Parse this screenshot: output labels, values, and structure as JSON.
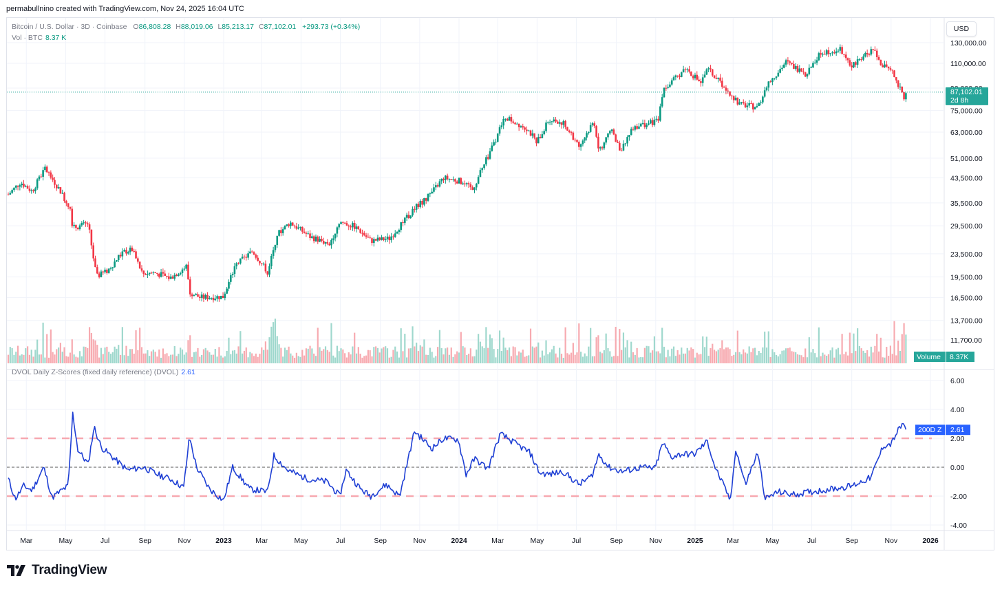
{
  "header": {
    "attribution": "permabullnino created with TradingView.com, Nov 24, 2025 16:04 UTC"
  },
  "legend": {
    "symbol": "Bitcoin / U.S. Dollar · 3D · Coinbase",
    "o_label": "O",
    "o": "86,808.28",
    "h_label": "H",
    "h": "88,019.06",
    "l_label": "L",
    "l": "85,213.17",
    "c_label": "C",
    "c": "87,102.01",
    "change": "+293.73 (+0.34%)",
    "vol_label": "Vol · BTC",
    "vol": "8.37 K",
    "indicator": "DVOL Daily Z-Scores (fixed daily reference) (DVOL)",
    "indicator_value": "2.61"
  },
  "currency_button": "USD",
  "price_axis": [
    "130,000.00",
    "110,000.00",
    "90,000.00",
    "75,000.00",
    "63,000.00",
    "51,000.00",
    "43,500.00",
    "35,500.00",
    "29,500.00",
    "23,500.00",
    "19,500.00",
    "16,500.00",
    "13,700.00",
    "11,700.00"
  ],
  "last_price_tag": {
    "price": "87,102.01",
    "countdown": "2d 8h"
  },
  "volume_tag": {
    "label": "Volume",
    "value": "8.37K"
  },
  "z_axis": [
    "6.00",
    "4.00",
    "2.00",
    "0.00",
    "-2.00",
    "-4.00"
  ],
  "z_tag": {
    "label": "200D Z",
    "value": "2.61"
  },
  "time_axis": [
    "Mar",
    "May",
    "Jul",
    "Sep",
    "Nov",
    "2023",
    "Mar",
    "May",
    "Jul",
    "Sep",
    "Nov",
    "2024",
    "Mar",
    "May",
    "Jul",
    "Sep",
    "Nov",
    "2025",
    "Mar",
    "May",
    "Jul",
    "Sep",
    "Nov",
    "2026"
  ],
  "brand": "TradingView",
  "colors": {
    "up": "#089981",
    "down": "#f23645",
    "zline": "#1e3fd4",
    "threshold": "#f7a8b0",
    "tag": "#26a69a",
    "ztag": "#2962ff"
  },
  "chart_data": [
    {
      "type": "candlestick",
      "title": "Bitcoin / U.S. Dollar · 3D · Coinbase",
      "x_range": [
        "2022-02",
        "2025-11-24"
      ],
      "log_scale": true,
      "ylim": [
        11700,
        130000
      ],
      "close_path": [
        [
          "2022-02-01",
          38000
        ],
        [
          "2022-02-20",
          42000
        ],
        [
          "2022-03-10",
          39000
        ],
        [
          "2022-03-30",
          47000
        ],
        [
          "2022-04-20",
          40000
        ],
        [
          "2022-05-08",
          34000
        ],
        [
          "2022-05-12",
          29000
        ],
        [
          "2022-06-05",
          30000
        ],
        [
          "2022-06-14",
          22000
        ],
        [
          "2022-06-18",
          19500
        ],
        [
          "2022-07-05",
          20500
        ],
        [
          "2022-07-28",
          23800
        ],
        [
          "2022-08-12",
          24300
        ],
        [
          "2022-08-28",
          20000
        ],
        [
          "2022-09-15",
          20200
        ],
        [
          "2022-10-10",
          19300
        ],
        [
          "2022-11-05",
          21300
        ],
        [
          "2022-11-09",
          17200
        ],
        [
          "2022-11-25",
          16500
        ],
        [
          "2022-12-31",
          16600
        ],
        [
          "2023-01-20",
          21500
        ],
        [
          "2023-02-15",
          24000
        ],
        [
          "2023-03-10",
          20300
        ],
        [
          "2023-03-25",
          27500
        ],
        [
          "2023-04-14",
          30300
        ],
        [
          "2023-05-15",
          27000
        ],
        [
          "2023-06-14",
          25500
        ],
        [
          "2023-06-30",
          30500
        ],
        [
          "2023-07-25",
          29200
        ],
        [
          "2023-08-17",
          26100
        ],
        [
          "2023-09-15",
          26600
        ],
        [
          "2023-10-24",
          34000
        ],
        [
          "2023-11-15",
          37500
        ],
        [
          "2023-12-08",
          43500
        ],
        [
          "2023-12-31",
          42500
        ],
        [
          "2024-01-22",
          39500
        ],
        [
          "2024-02-15",
          52000
        ],
        [
          "2024-03-13",
          71000
        ],
        [
          "2024-04-15",
          65000
        ],
        [
          "2024-05-01",
          58000
        ],
        [
          "2024-05-20",
          70000
        ],
        [
          "2024-06-10",
          68000
        ],
        [
          "2024-07-05",
          56000
        ],
        [
          "2024-07-28",
          69000
        ],
        [
          "2024-08-05",
          54000
        ],
        [
          "2024-08-25",
          64000
        ],
        [
          "2024-09-06",
          54000
        ],
        [
          "2024-09-28",
          66000
        ],
        [
          "2024-10-15",
          67000
        ],
        [
          "2024-11-05",
          69000
        ],
        [
          "2024-11-12",
          88000
        ],
        [
          "2024-12-05",
          99000
        ],
        [
          "2024-12-17",
          106000
        ],
        [
          "2025-01-10",
          94000
        ],
        [
          "2025-01-21",
          105000
        ],
        [
          "2025-02-25",
          86000
        ],
        [
          "2025-03-10",
          79000
        ],
        [
          "2025-04-08",
          77000
        ],
        [
          "2025-04-25",
          94000
        ],
        [
          "2025-05-22",
          111000
        ],
        [
          "2025-06-22",
          101000
        ],
        [
          "2025-07-14",
          120000
        ],
        [
          "2025-08-14",
          123000
        ],
        [
          "2025-09-01",
          108000
        ],
        [
          "2025-10-05",
          124000
        ],
        [
          "2025-10-11",
          112000
        ],
        [
          "2025-11-04",
          101000
        ],
        [
          "2025-11-21",
          84000
        ],
        [
          "2025-11-24",
          87102
        ]
      ],
      "last_close": 87102.01
    },
    {
      "type": "bar",
      "title": "Vol · BTC",
      "last_value": "8.37K"
    },
    {
      "type": "line",
      "title": "DVOL Daily Z-Scores (fixed daily reference) (DVOL)",
      "series": [
        {
          "name": "200D Z",
          "last_value": 2.61
        }
      ],
      "ylim": [
        -4,
        6
      ],
      "reference_lines": [
        2,
        0,
        -2
      ],
      "points": [
        [
          "2022-02-01",
          -0.8
        ],
        [
          "2022-02-12",
          -2.2
        ],
        [
          "2022-02-25",
          -1.3
        ],
        [
          "2022-03-10",
          -1.6
        ],
        [
          "2022-03-28",
          0.0
        ],
        [
          "2022-04-10",
          -2.1
        ],
        [
          "2022-04-25",
          -1.6
        ],
        [
          "2022-05-05",
          -1.3
        ],
        [
          "2022-05-12",
          3.7
        ],
        [
          "2022-05-20",
          1.2
        ],
        [
          "2022-06-05",
          0.2
        ],
        [
          "2022-06-14",
          2.8
        ],
        [
          "2022-06-25",
          1.4
        ],
        [
          "2022-07-15",
          0.6
        ],
        [
          "2022-08-05",
          -0.2
        ],
        [
          "2022-08-30",
          0.0
        ],
        [
          "2022-09-20",
          -0.5
        ],
        [
          "2022-10-10",
          -0.8
        ],
        [
          "2022-10-31",
          -1.4
        ],
        [
          "2022-11-09",
          2.1
        ],
        [
          "2022-11-20",
          0.0
        ],
        [
          "2022-12-10",
          -1.5
        ],
        [
          "2023-01-01",
          -2.3
        ],
        [
          "2023-01-15",
          0.0
        ],
        [
          "2023-02-10",
          -1.5
        ],
        [
          "2023-03-10",
          -1.7
        ],
        [
          "2023-03-20",
          0.8
        ],
        [
          "2023-04-10",
          -0.2
        ],
        [
          "2023-05-10",
          -0.8
        ],
        [
          "2023-06-10",
          -1.0
        ],
        [
          "2023-06-30",
          -2.0
        ],
        [
          "2023-07-10",
          -0.2
        ],
        [
          "2023-08-01",
          -1.5
        ],
        [
          "2023-08-17",
          -2.0
        ],
        [
          "2023-09-10",
          -1.2
        ],
        [
          "2023-10-01",
          -2.0
        ],
        [
          "2023-10-24",
          2.5
        ],
        [
          "2023-11-20",
          1.3
        ],
        [
          "2023-12-08",
          2.0
        ],
        [
          "2023-12-31",
          1.9
        ],
        [
          "2024-01-12",
          -0.5
        ],
        [
          "2024-01-25",
          0.6
        ],
        [
          "2024-02-15",
          -0.1
        ],
        [
          "2024-03-05",
          2.3
        ],
        [
          "2024-03-30",
          1.6
        ],
        [
          "2024-04-20",
          1.0
        ],
        [
          "2024-05-05",
          -0.4
        ],
        [
          "2024-05-20",
          -0.5
        ],
        [
          "2024-06-10",
          -0.3
        ],
        [
          "2024-07-05",
          -1.2
        ],
        [
          "2024-07-25",
          -0.6
        ],
        [
          "2024-08-05",
          0.9
        ],
        [
          "2024-08-20",
          0.0
        ],
        [
          "2024-09-10",
          -0.3
        ],
        [
          "2024-10-10",
          0.0
        ],
        [
          "2024-10-31",
          -0.1
        ],
        [
          "2024-11-12",
          1.7
        ],
        [
          "2024-11-25",
          0.7
        ],
        [
          "2024-12-10",
          0.9
        ],
        [
          "2024-12-31",
          0.9
        ],
        [
          "2025-01-20",
          1.8
        ],
        [
          "2025-02-01",
          0.0
        ],
        [
          "2025-02-25",
          -2.3
        ],
        [
          "2025-03-05",
          1.3
        ],
        [
          "2025-03-20",
          -1.2
        ],
        [
          "2025-04-08",
          1.0
        ],
        [
          "2025-04-20",
          -2.2
        ],
        [
          "2025-05-10",
          -1.7
        ],
        [
          "2025-06-01",
          -1.9
        ],
        [
          "2025-07-01",
          -1.7
        ],
        [
          "2025-08-01",
          -1.5
        ],
        [
          "2025-09-01",
          -1.3
        ],
        [
          "2025-10-01",
          -0.7
        ],
        [
          "2025-10-20",
          1.5
        ],
        [
          "2025-11-01",
          1.6
        ],
        [
          "2025-11-10",
          2.4
        ],
        [
          "2025-11-21",
          3.1
        ],
        [
          "2025-11-24",
          2.61
        ]
      ]
    }
  ]
}
